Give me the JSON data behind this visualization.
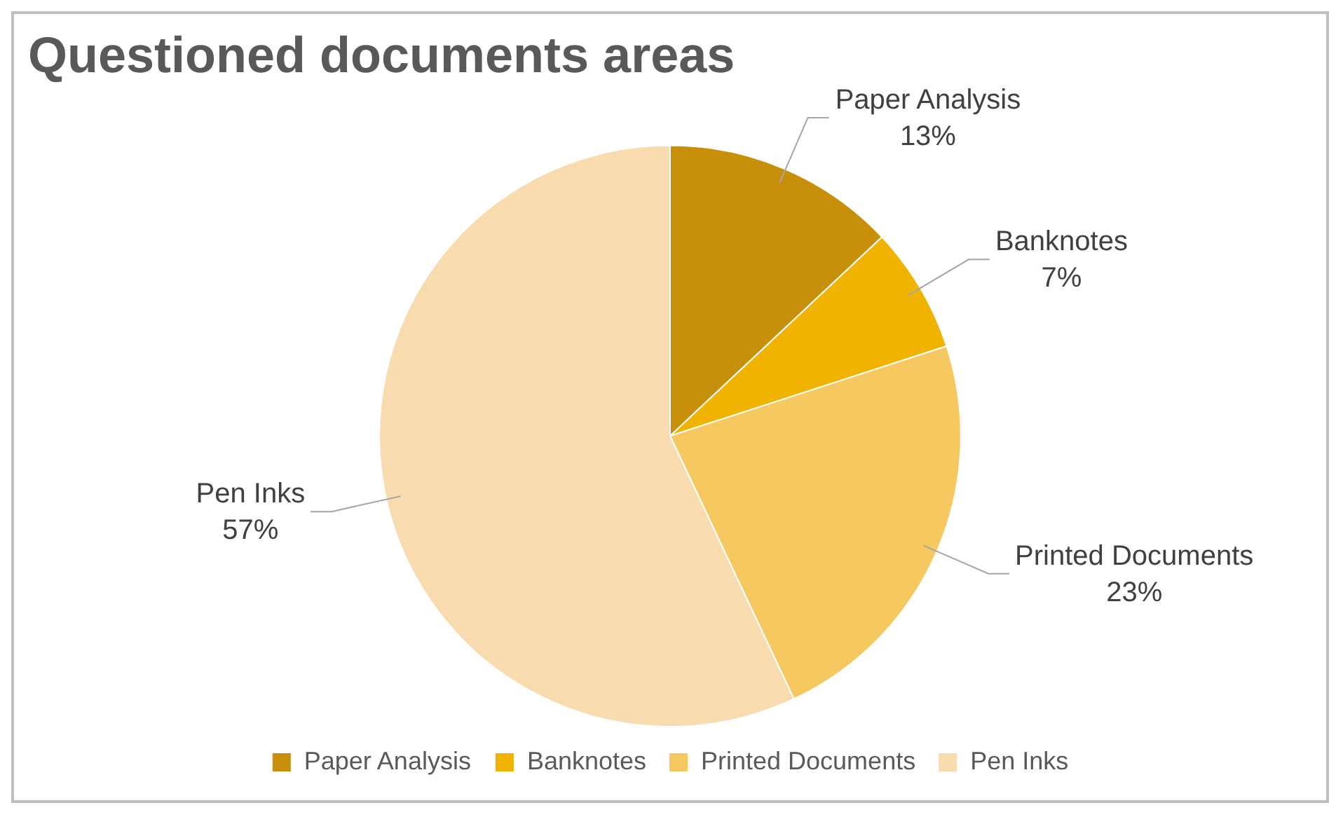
{
  "chart_data": {
    "type": "pie",
    "title": "Questioned documents areas",
    "categories": [
      "Paper Analysis",
      "Banknotes",
      "Printed Documents",
      "Pen Inks"
    ],
    "values": [
      13,
      7,
      23,
      57
    ],
    "colors": [
      "#c8900a",
      "#f0b400",
      "#f5c860",
      "#f8dcb0"
    ],
    "value_labels": [
      "13%",
      "7%",
      "23%",
      "57%"
    ],
    "legend": "bottom"
  }
}
